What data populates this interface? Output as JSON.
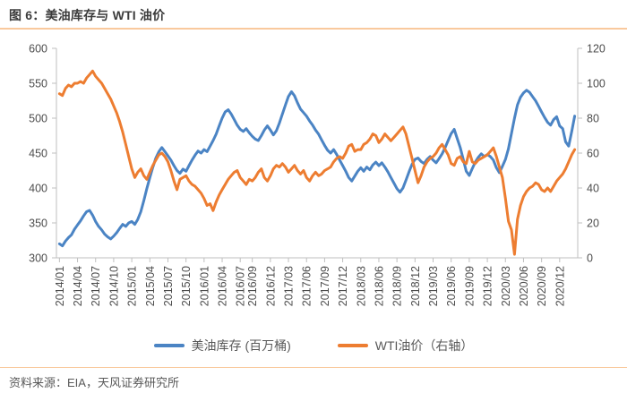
{
  "header": {
    "title": "图 6：美油库存与 WTI 油价"
  },
  "footer": {
    "source": "资料来源：EIA，天风证券研究所"
  },
  "colors": {
    "inventory": "#4b84c4",
    "wti": "#ed7d31",
    "accent_rule": "#f9c99d",
    "axis_line": "#bfbfbf",
    "tick_text": "#4c4c4c"
  },
  "legend": {
    "items": [
      {
        "id": "inventory",
        "label": "美油库存 (百万桶)"
      },
      {
        "id": "wti",
        "label": "WTI油价（右轴）"
      }
    ]
  },
  "chart_data": {
    "type": "line",
    "title": "美油库存与 WTI 油价",
    "grid": false,
    "legend_position": "bottom",
    "x_unit": "months since 2014/01 (weekly EIA data, sampled half-monthly)",
    "x_start_month": "2014/01",
    "x_step_months": 0.5,
    "x_axis_range_months": [
      -0.5,
      86
    ],
    "x_tick_months": [
      0,
      3,
      6,
      9,
      12,
      15,
      18,
      21,
      24,
      27,
      30,
      32,
      35,
      38,
      41,
      44,
      47,
      50,
      53,
      56,
      59,
      62,
      65,
      68,
      71,
      74,
      77,
      80,
      83
    ],
    "x_tick_labels": [
      "2014/01",
      "2014/04",
      "2014/07",
      "2014/10",
      "2015/01",
      "2015/04",
      "2015/07",
      "2015/10",
      "2016/01",
      "2016/04",
      "2016/07",
      "2016/09",
      "2016/12",
      "2017/03",
      "2017/06",
      "2017/09",
      "2017/12",
      "2018/03",
      "2018/06",
      "2018/09",
      "2018/12",
      "2019/03",
      "2019/06",
      "2019/09",
      "2019/12",
      "2020/03",
      "2020/06",
      "2020/09",
      "2020/12"
    ],
    "left_axis": {
      "label": "美油库存 (百万桶)",
      "range": [
        300,
        600
      ],
      "ticks": [
        600,
        550,
        500,
        450,
        400,
        350,
        300
      ]
    },
    "right_axis": {
      "label": "WTI油价",
      "range": [
        0,
        120
      ],
      "ticks": [
        120,
        100,
        80,
        60,
        40,
        20,
        0
      ]
    },
    "series": [
      {
        "name": "美油库存 (百万桶)",
        "axis": "left",
        "color_key": "inventory",
        "values": [
          320,
          317,
          324,
          329,
          333,
          341,
          347,
          353,
          360,
          366,
          368,
          361,
          352,
          345,
          340,
          334,
          330,
          327,
          331,
          336,
          342,
          348,
          345,
          350,
          352,
          348,
          355,
          366,
          382,
          399,
          415,
          430,
          443,
          452,
          458,
          452,
          446,
          440,
          432,
          425,
          421,
          427,
          424,
          432,
          440,
          447,
          453,
          450,
          455,
          452,
          460,
          468,
          477,
          489,
          500,
          509,
          512,
          506,
          498,
          490,
          484,
          481,
          485,
          479,
          474,
          470,
          468,
          475,
          483,
          489,
          483,
          476,
          482,
          493,
          506,
          519,
          531,
          538,
          532,
          522,
          513,
          508,
          503,
          496,
          490,
          483,
          477,
          469,
          461,
          454,
          450,
          455,
          448,
          440,
          432,
          424,
          415,
          410,
          417,
          424,
          429,
          424,
          430,
          426,
          433,
          437,
          432,
          436,
          430,
          423,
          415,
          407,
          399,
          394,
          400,
          411,
          423,
          434,
          441,
          443,
          438,
          435,
          441,
          445,
          440,
          436,
          442,
          449,
          458,
          468,
          478,
          484,
          471,
          458,
          441,
          424,
          418,
          428,
          437,
          444,
          449,
          445,
          448,
          445,
          440,
          429,
          422,
          431,
          441,
          456,
          478,
          500,
          519,
          530,
          536,
          540,
          537,
          531,
          525,
          517,
          509,
          501,
          494,
          490,
          498,
          502,
          489,
          485,
          466,
          460,
          481,
          503
        ]
      },
      {
        "name": "WTI油价（右轴）",
        "axis": "right",
        "color_key": "wti",
        "values": [
          94,
          93,
          97,
          99,
          98,
          100,
          100,
          101,
          100,
          103,
          105,
          107,
          104,
          102,
          100,
          97,
          94,
          91,
          87,
          83,
          78,
          72,
          65,
          58,
          51,
          46,
          49,
          51,
          47,
          45,
          49,
          53,
          56,
          59,
          60,
          58,
          55,
          50,
          44,
          39,
          45,
          46,
          47,
          44,
          42,
          41,
          39,
          37,
          34,
          30,
          31,
          27,
          32,
          36,
          39,
          42,
          45,
          47,
          49,
          50,
          46,
          44,
          42,
          45,
          44,
          46,
          49,
          51,
          46,
          44,
          47,
          51,
          53,
          52,
          54,
          52,
          49,
          51,
          53,
          50,
          48,
          50,
          46,
          44,
          47,
          49,
          47,
          48,
          50,
          51,
          52,
          55,
          57,
          58,
          57,
          60,
          64,
          65,
          61,
          62,
          62,
          65,
          66,
          68,
          71,
          70,
          66,
          68,
          71,
          69,
          67,
          69,
          71,
          73,
          75,
          71,
          64,
          57,
          50,
          43,
          47,
          52,
          55,
          57,
          58,
          60,
          63,
          65,
          62,
          59,
          54,
          53,
          57,
          58,
          55,
          54,
          61,
          55,
          54,
          56,
          57,
          58,
          59,
          61,
          63,
          58,
          52,
          46,
          34,
          21,
          16,
          2,
          22,
          30,
          35,
          38,
          40,
          41,
          43,
          42,
          39,
          38,
          40,
          38,
          41,
          44,
          46,
          48,
          51,
          55,
          59,
          62
        ]
      }
    ]
  }
}
